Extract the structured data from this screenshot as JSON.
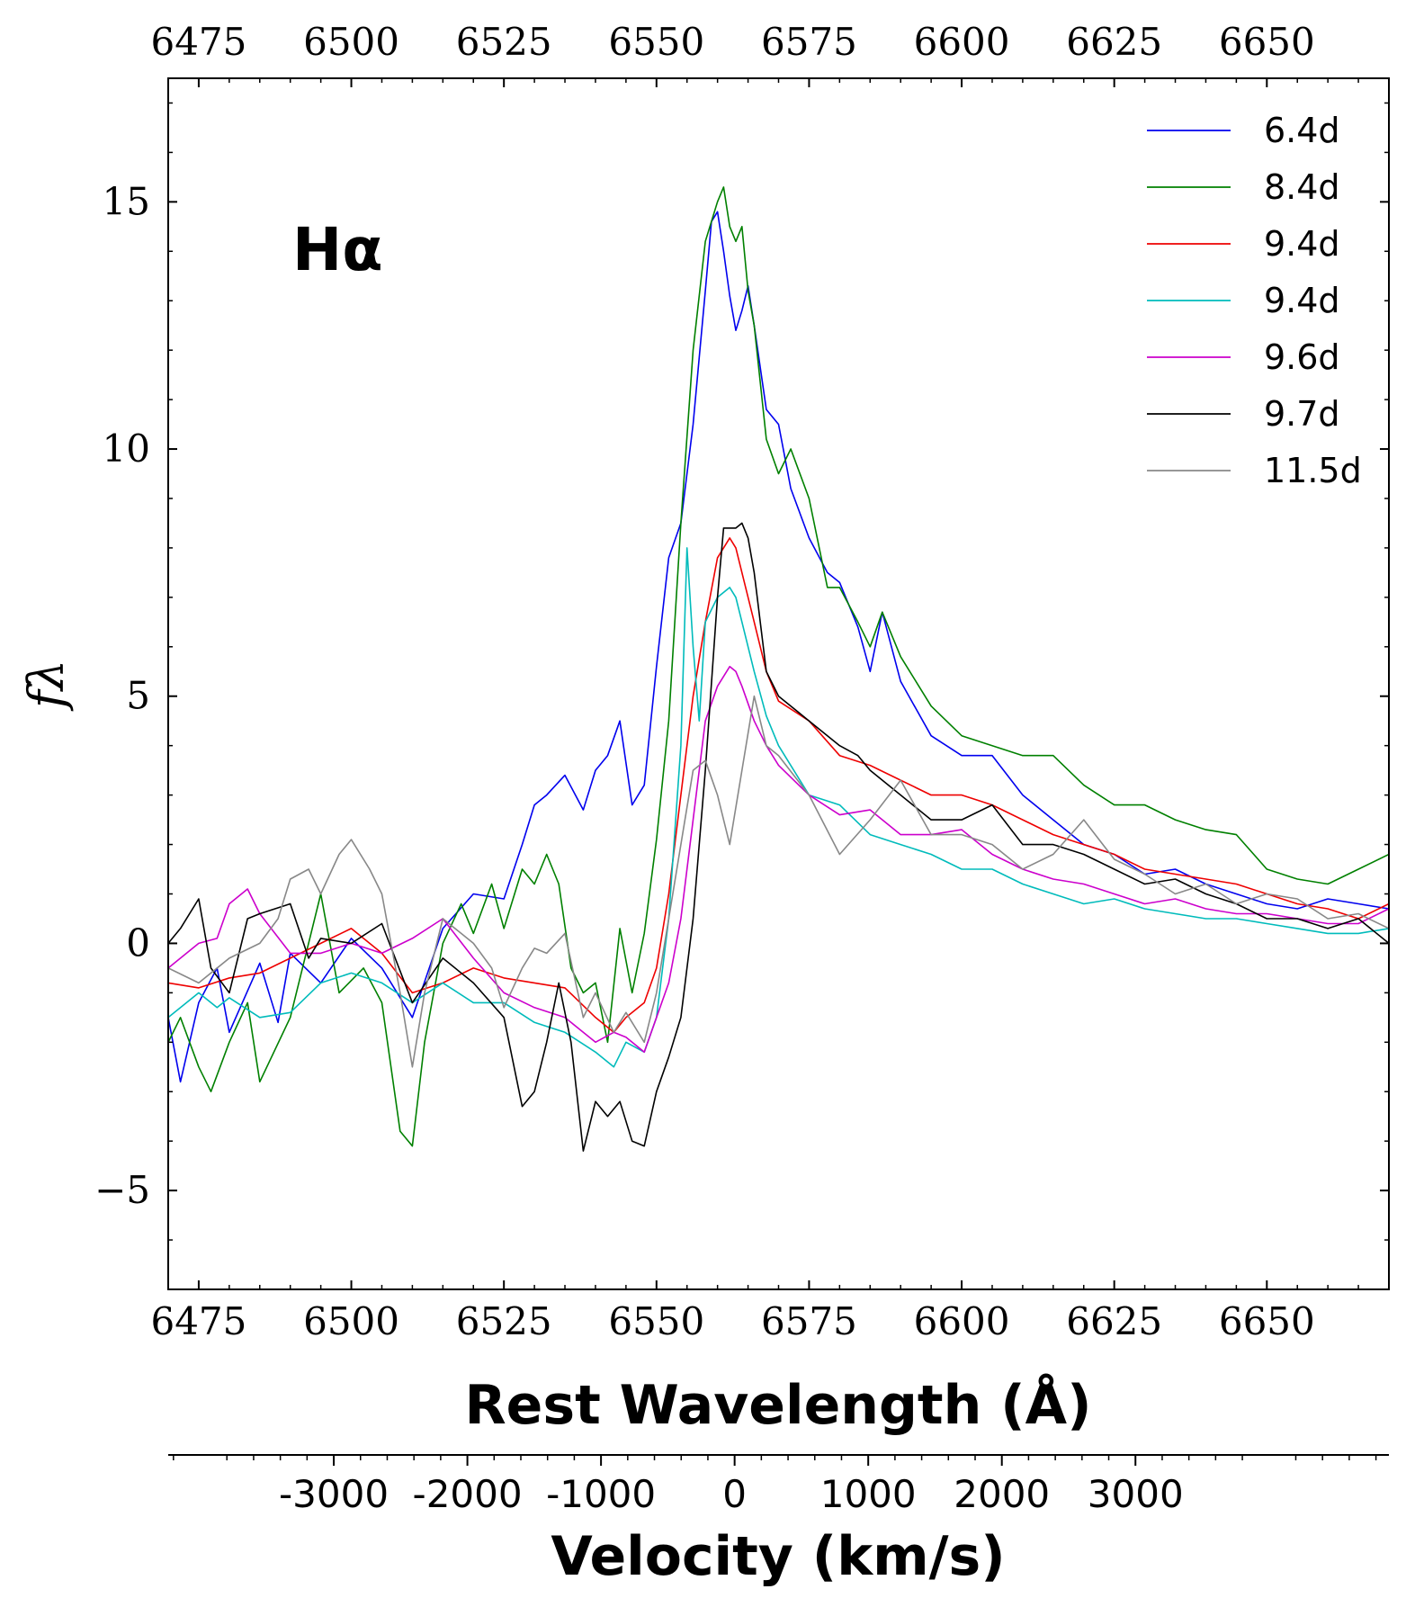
{
  "chart_data": {
    "type": "line",
    "annotation": "Hα",
    "xlabel": "Rest Wavelength (Å)",
    "xlabel2": "Velocity (km/s)",
    "ylabel": "fλ",
    "xlim": [
      6470,
      6670
    ],
    "ylim": [
      -7,
      17.5
    ],
    "x_ticks": [
      6475,
      6500,
      6525,
      6550,
      6575,
      6600,
      6625,
      6650
    ],
    "y_ticks": [
      -5,
      0,
      5,
      10,
      15
    ],
    "y_tick_labels": [
      "−5",
      "0",
      "5",
      "10",
      "15"
    ],
    "velocity_ticks": [
      -3000,
      -2000,
      -1000,
      0,
      1000,
      2000,
      3000
    ],
    "velocity_tick_labels": [
      "-3000",
      "-2000",
      "-1000",
      "0",
      "1000",
      "2000",
      "3000"
    ],
    "rest_wavelength": 6562.8,
    "legend_position": "top-right",
    "series": [
      {
        "name": "6.4d",
        "color": "#0000ee",
        "x": [
          6470,
          6472,
          6475,
          6478,
          6480,
          6485,
          6488,
          6490,
          6495,
          6500,
          6505,
          6510,
          6515,
          6520,
          6525,
          6528,
          6530,
          6532,
          6535,
          6538,
          6540,
          6542,
          6544,
          6546,
          6548,
          6550,
          6552,
          6554,
          6556,
          6558,
          6559,
          6560,
          6561,
          6562,
          6563,
          6564,
          6565,
          6566,
          6568,
          6570,
          6572,
          6575,
          6578,
          6580,
          6583,
          6585,
          6587,
          6590,
          6595,
          6600,
          6605,
          6610,
          6615,
          6620,
          6625,
          6630,
          6635,
          6640,
          6645,
          6650,
          6655,
          6660,
          6665,
          6670
        ],
        "y": [
          -1.5,
          -2.8,
          -1.2,
          -0.5,
          -1.8,
          -0.4,
          -1.6,
          -0.2,
          -0.8,
          0.1,
          -0.5,
          -1.5,
          0.3,
          1.0,
          0.9,
          2.0,
          2.8,
          3.0,
          3.4,
          2.7,
          3.5,
          3.8,
          4.5,
          2.8,
          3.2,
          5.6,
          7.8,
          8.5,
          10.5,
          13.2,
          14.6,
          14.8,
          14.0,
          13.1,
          12.4,
          12.8,
          13.3,
          12.5,
          10.8,
          10.5,
          9.2,
          8.2,
          7.5,
          7.3,
          6.4,
          5.5,
          6.7,
          5.3,
          4.2,
          3.8,
          3.8,
          3.0,
          2.5,
          2.0,
          1.8,
          1.4,
          1.5,
          1.2,
          1.0,
          0.8,
          0.7,
          0.9,
          0.8,
          0.7
        ]
      },
      {
        "name": "8.4d",
        "color": "#008000",
        "x": [
          6470,
          6472,
          6475,
          6477,
          6480,
          6483,
          6485,
          6490,
          6495,
          6498,
          6502,
          6505,
          6508,
          6510,
          6512,
          6515,
          6518,
          6520,
          6523,
          6525,
          6528,
          6530,
          6532,
          6534,
          6536,
          6538,
          6540,
          6542,
          6544,
          6546,
          6548,
          6550,
          6552,
          6554,
          6556,
          6558,
          6560,
          6561,
          6562,
          6563,
          6564,
          6565,
          6566,
          6568,
          6570,
          6572,
          6575,
          6578,
          6580,
          6583,
          6585,
          6587,
          6590,
          6595,
          6600,
          6605,
          6610,
          6615,
          6620,
          6625,
          6630,
          6635,
          6640,
          6645,
          6650,
          6655,
          6660,
          6665,
          6670
        ],
        "y": [
          -2.0,
          -1.5,
          -2.5,
          -3.0,
          -2.0,
          -1.2,
          -2.8,
          -1.5,
          1.0,
          -1.0,
          -0.5,
          -1.2,
          -3.8,
          -4.1,
          -2.0,
          0.0,
          0.8,
          0.2,
          1.2,
          0.3,
          1.5,
          1.2,
          1.8,
          1.2,
          -0.5,
          -1.0,
          -0.8,
          -2.0,
          0.3,
          -1.0,
          0.2,
          2.1,
          4.5,
          8.5,
          12.0,
          14.2,
          15.0,
          15.3,
          14.5,
          14.2,
          14.5,
          13.2,
          12.5,
          10.2,
          9.5,
          10.0,
          9.0,
          7.2,
          7.2,
          6.5,
          6.0,
          6.7,
          5.8,
          4.8,
          4.2,
          4.0,
          3.8,
          3.8,
          3.2,
          2.8,
          2.8,
          2.5,
          2.3,
          2.2,
          1.5,
          1.3,
          1.2,
          1.5,
          1.8
        ]
      },
      {
        "name": "9.4d",
        "color": "#ee0000",
        "x": [
          6470,
          6475,
          6480,
          6485,
          6490,
          6495,
          6500,
          6505,
          6510,
          6515,
          6520,
          6525,
          6530,
          6535,
          6540,
          6543,
          6545,
          6548,
          6550,
          6552,
          6554,
          6556,
          6558,
          6560,
          6562,
          6563,
          6564,
          6566,
          6568,
          6570,
          6575,
          6580,
          6585,
          6590,
          6595,
          6600,
          6605,
          6610,
          6615,
          6620,
          6625,
          6630,
          6635,
          6640,
          6645,
          6650,
          6655,
          6660,
          6665,
          6670
        ],
        "y": [
          -0.8,
          -0.9,
          -0.7,
          -0.6,
          -0.3,
          0.0,
          0.3,
          -0.2,
          -1.0,
          -0.8,
          -0.5,
          -0.7,
          -0.8,
          -0.9,
          -1.5,
          -1.8,
          -1.5,
          -1.2,
          -0.5,
          1.0,
          3.0,
          5.0,
          6.5,
          7.8,
          8.2,
          8.0,
          7.5,
          6.5,
          5.5,
          4.9,
          4.5,
          3.8,
          3.6,
          3.3,
          3.0,
          3.0,
          2.8,
          2.5,
          2.2,
          2.0,
          1.8,
          1.5,
          1.4,
          1.3,
          1.2,
          1.0,
          0.8,
          0.7,
          0.5,
          0.8
        ]
      },
      {
        "name": "9.4d",
        "color": "#00bbbb",
        "x": [
          6470,
          6475,
          6478,
          6480,
          6485,
          6490,
          6495,
          6500,
          6505,
          6510,
          6515,
          6520,
          6525,
          6530,
          6535,
          6540,
          6543,
          6545,
          6548,
          6550,
          6552,
          6554,
          6555,
          6556,
          6557,
          6558,
          6560,
          6562,
          6563,
          6564,
          6566,
          6568,
          6570,
          6575,
          6580,
          6585,
          6590,
          6595,
          6600,
          6605,
          6610,
          6615,
          6620,
          6625,
          6630,
          6635,
          6640,
          6645,
          6650,
          6655,
          6660,
          6665,
          6670
        ],
        "y": [
          -1.5,
          -1.0,
          -1.3,
          -1.1,
          -1.5,
          -1.4,
          -0.8,
          -0.6,
          -0.8,
          -1.2,
          -0.8,
          -1.2,
          -1.2,
          -1.6,
          -1.8,
          -2.2,
          -2.5,
          -2.0,
          -2.2,
          -1.5,
          0.5,
          4.0,
          8.0,
          6.0,
          4.5,
          6.5,
          7.0,
          7.2,
          7.0,
          6.5,
          5.5,
          4.6,
          4.0,
          3.0,
          2.8,
          2.2,
          2.0,
          1.8,
          1.5,
          1.5,
          1.2,
          1.0,
          0.8,
          0.9,
          0.7,
          0.6,
          0.5,
          0.5,
          0.4,
          0.3,
          0.2,
          0.2,
          0.3
        ]
      },
      {
        "name": "9.6d",
        "color": "#cc00cc",
        "x": [
          6470,
          6475,
          6478,
          6480,
          6483,
          6485,
          6490,
          6495,
          6500,
          6505,
          6510,
          6515,
          6520,
          6525,
          6530,
          6535,
          6540,
          6543,
          6545,
          6548,
          6550,
          6552,
          6554,
          6556,
          6558,
          6560,
          6562,
          6563,
          6564,
          6566,
          6568,
          6570,
          6575,
          6580,
          6585,
          6590,
          6595,
          6600,
          6605,
          6610,
          6615,
          6620,
          6625,
          6630,
          6635,
          6640,
          6645,
          6650,
          6655,
          6660,
          6665,
          6670
        ],
        "y": [
          -0.5,
          0.0,
          0.1,
          0.8,
          1.1,
          0.6,
          -0.2,
          -0.2,
          0.0,
          -0.2,
          0.1,
          0.5,
          -0.3,
          -1.0,
          -1.3,
          -1.5,
          -2.0,
          -1.8,
          -1.9,
          -2.2,
          -1.5,
          -0.8,
          0.5,
          2.5,
          4.5,
          5.2,
          5.6,
          5.5,
          5.2,
          4.5,
          4.0,
          3.6,
          3.0,
          2.6,
          2.7,
          2.2,
          2.2,
          2.3,
          1.8,
          1.5,
          1.3,
          1.2,
          1.0,
          0.8,
          0.9,
          0.7,
          0.6,
          0.6,
          0.5,
          0.4,
          0.4,
          0.7
        ]
      },
      {
        "name": "9.7d",
        "color": "#000000",
        "x": [
          6470,
          6472,
          6475,
          6477,
          6480,
          6483,
          6485,
          6490,
          6493,
          6495,
          6500,
          6505,
          6510,
          6515,
          6520,
          6525,
          6528,
          6530,
          6532,
          6534,
          6536,
          6538,
          6540,
          6542,
          6544,
          6546,
          6548,
          6550,
          6552,
          6554,
          6556,
          6558,
          6560,
          6561,
          6563,
          6564,
          6565,
          6566,
          6568,
          6570,
          6575,
          6580,
          6583,
          6585,
          6590,
          6595,
          6600,
          6605,
          6610,
          6615,
          6620,
          6625,
          6630,
          6635,
          6640,
          6645,
          6650,
          6655,
          6660,
          6665,
          6670
        ],
        "y": [
          0.0,
          0.3,
          0.9,
          -0.5,
          -1.0,
          0.5,
          0.6,
          0.8,
          -0.3,
          0.1,
          0.0,
          0.4,
          -1.2,
          -0.3,
          -0.8,
          -1.5,
          -3.3,
          -3.0,
          -2.0,
          -0.8,
          -2.0,
          -4.2,
          -3.2,
          -3.5,
          -3.2,
          -4.0,
          -4.1,
          -3.0,
          -2.3,
          -1.5,
          0.5,
          3.5,
          7.0,
          8.4,
          8.4,
          8.5,
          8.2,
          7.5,
          5.5,
          5.0,
          4.5,
          4.0,
          3.8,
          3.5,
          3.0,
          2.5,
          2.5,
          2.8,
          2.0,
          2.0,
          1.8,
          1.5,
          1.2,
          1.3,
          1.0,
          0.8,
          0.5,
          0.5,
          0.3,
          0.5,
          0.0
        ]
      },
      {
        "name": "11.5d",
        "color": "#888888",
        "x": [
          6470,
          6475,
          6480,
          6485,
          6488,
          6490,
          6493,
          6495,
          6498,
          6500,
          6503,
          6505,
          6508,
          6510,
          6512,
          6515,
          6518,
          6520,
          6523,
          6525,
          6528,
          6530,
          6532,
          6535,
          6538,
          6540,
          6543,
          6545,
          6548,
          6550,
          6552,
          6554,
          6556,
          6558,
          6560,
          6562,
          6564,
          6566,
          6568,
          6570,
          6575,
          6580,
          6585,
          6590,
          6595,
          6600,
          6605,
          6610,
          6615,
          6620,
          6625,
          6630,
          6635,
          6640,
          6645,
          6650,
          6655,
          6660,
          6665,
          6670
        ],
        "y": [
          -0.5,
          -0.8,
          -0.3,
          0.0,
          0.5,
          1.3,
          1.5,
          1.0,
          1.8,
          2.1,
          1.5,
          1.0,
          -1.0,
          -2.5,
          -1.0,
          0.5,
          0.2,
          0.0,
          -0.5,
          -1.3,
          -0.5,
          -0.1,
          -0.2,
          0.2,
          -1.5,
          -1.0,
          -1.8,
          -1.4,
          -2.0,
          -1.0,
          0.5,
          2.0,
          3.5,
          3.7,
          3.0,
          2.0,
          3.5,
          5.0,
          4.0,
          3.8,
          3.0,
          1.8,
          2.5,
          3.3,
          2.2,
          2.2,
          2.0,
          1.5,
          1.8,
          2.5,
          1.7,
          1.4,
          1.0,
          1.2,
          0.8,
          1.0,
          0.9,
          0.5,
          0.6,
          0.3
        ]
      }
    ]
  }
}
